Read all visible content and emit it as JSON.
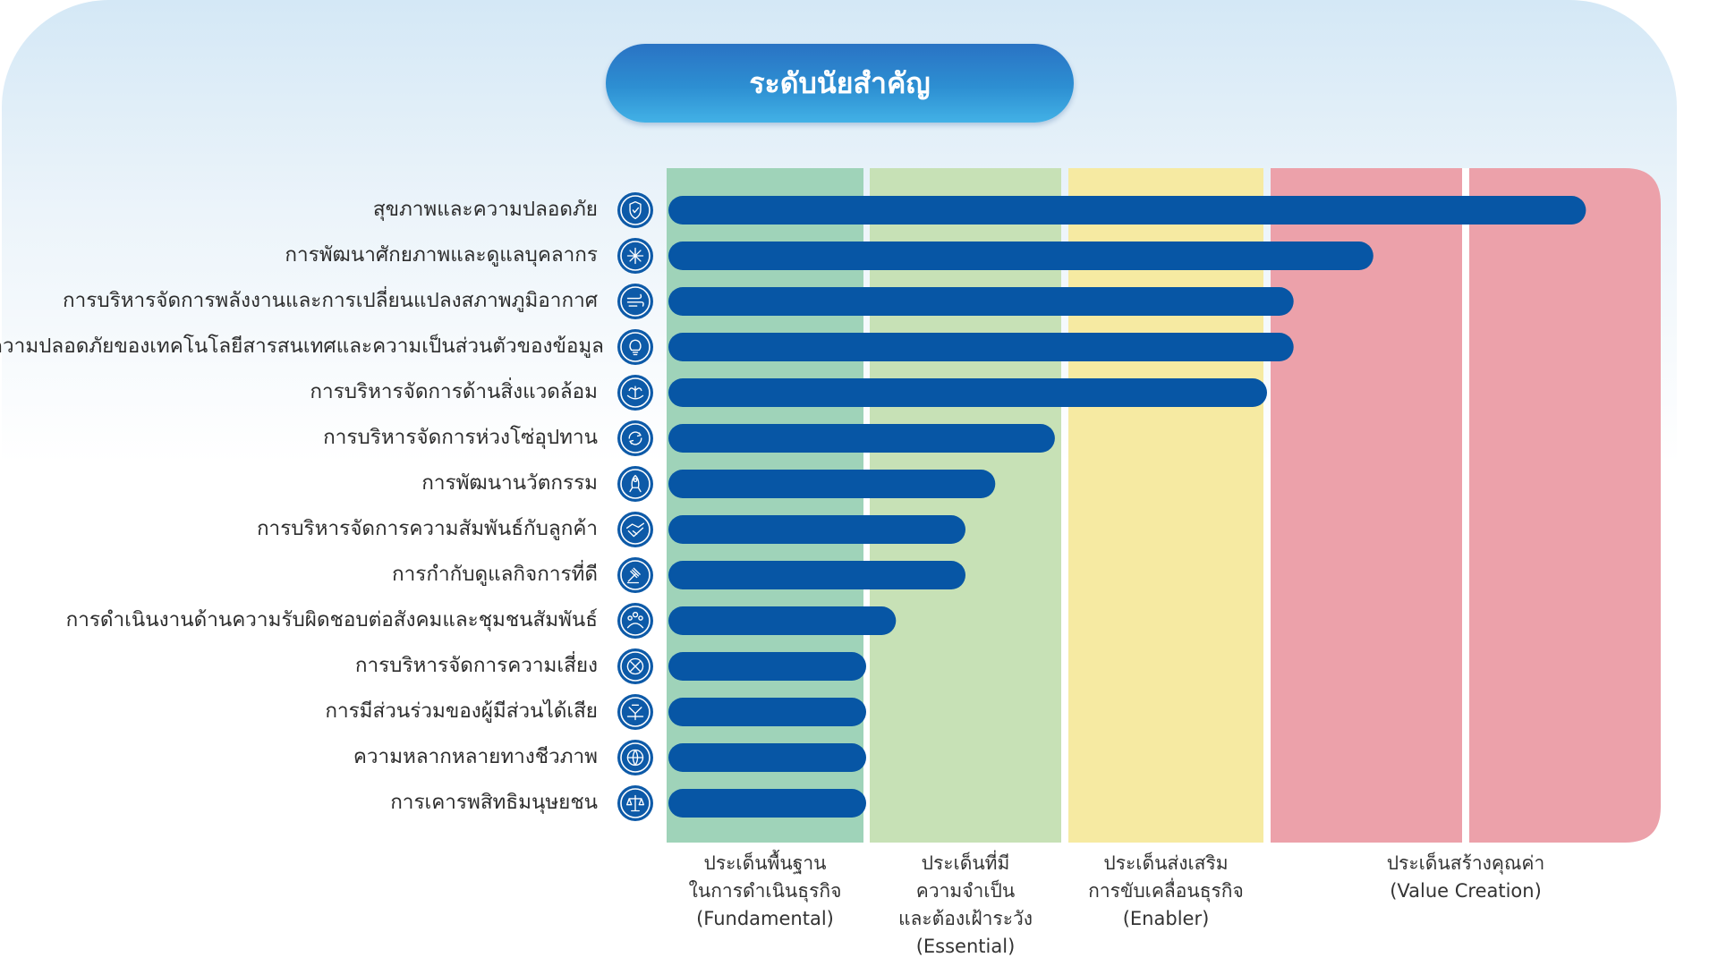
{
  "title": "ระดับนัยสำคัญ",
  "colors": {
    "bar": "#0756a5",
    "icon": "#0d5aa8",
    "zone_fundamental": "#9fd3b9",
    "zone_essential": "#c7e1b6",
    "zone_enabler": "#f6eaa2",
    "zone_value": "#eca1aa"
  },
  "chart_data": {
    "type": "bar",
    "orientation": "horizontal",
    "value_unit": "level (1 = Fundamental, 2 = Essential, 3 = Enabler, 4-5 = Value Creation)",
    "xlim": [
      0,
      5
    ],
    "grid": false,
    "zones": [
      {
        "label": "ประเด็นพื้นฐาน\nในการดำเนินธุรกิจ\n(Fundamental)",
        "from": 0,
        "to": 1
      },
      {
        "label": "ประเด็นที่มี\nความจำเป็น\nและต้องเฝ้าระวัง\n(Essential)",
        "from": 1,
        "to": 2
      },
      {
        "label": "ประเด็นส่งเสริม\nการขับเคลื่อนธุรกิจ\n(Enabler)",
        "from": 2,
        "to": 3
      },
      {
        "label": "ประเด็นสร้างคุณค่า\n(Value Creation)",
        "from": 3,
        "to": 5
      }
    ],
    "categories": [
      {
        "label": "สุขภาพและความปลอดภัย",
        "icon": "shield-icon"
      },
      {
        "label": "การพัฒนาศักยภาพและดูแลบุคลากร",
        "icon": "people-gear-icon"
      },
      {
        "label": "การบริหารจัดการพลังงานและการเปลี่ยนแปลงสภาพภูมิอากาศ",
        "icon": "wind-icon"
      },
      {
        "label": "ความปลอดภัยของเทคโนโลยีสารสนเทศและความเป็นส่วนตัวของข้อมูล",
        "icon": "lightbulb-gear-icon"
      },
      {
        "label": "การบริหารจัดการด้านสิ่งแวดล้อม",
        "icon": "hands-plant-icon"
      },
      {
        "label": "การบริหารจัดการห่วงโซ่อุปทาน",
        "icon": "cycle-arrows-icon"
      },
      {
        "label": "การพัฒนานวัตกรรม",
        "icon": "rocket-bulb-icon"
      },
      {
        "label": "การบริหารจัดการความสัมพันธ์กับลูกค้า",
        "icon": "handshake-icon"
      },
      {
        "label": "การกำกับดูแลกิจการที่ดี",
        "icon": "gavel-icon"
      },
      {
        "label": "การดำเนินงานด้านความรับผิดชอบต่อสังคมและชุมชนสัมพันธ์",
        "icon": "community-icon"
      },
      {
        "label": "การบริหารจัดการความเสี่ยง",
        "icon": "risk-icon"
      },
      {
        "label": "การมีส่วนร่วมของผู้มีส่วนได้เสีย",
        "icon": "stakeholder-icon"
      },
      {
        "label": "ความหลากหลายทางชีวภาพ",
        "icon": "biodiversity-icon"
      },
      {
        "label": "การเคารพสิทธิมนุษยชน",
        "icon": "scales-icon"
      }
    ],
    "values": [
      4.8,
      3.6,
      3.15,
      3.15,
      3.0,
      1.95,
      1.65,
      1.5,
      1.5,
      1.15,
      1.0,
      1.0,
      1.0,
      1.0
    ]
  }
}
